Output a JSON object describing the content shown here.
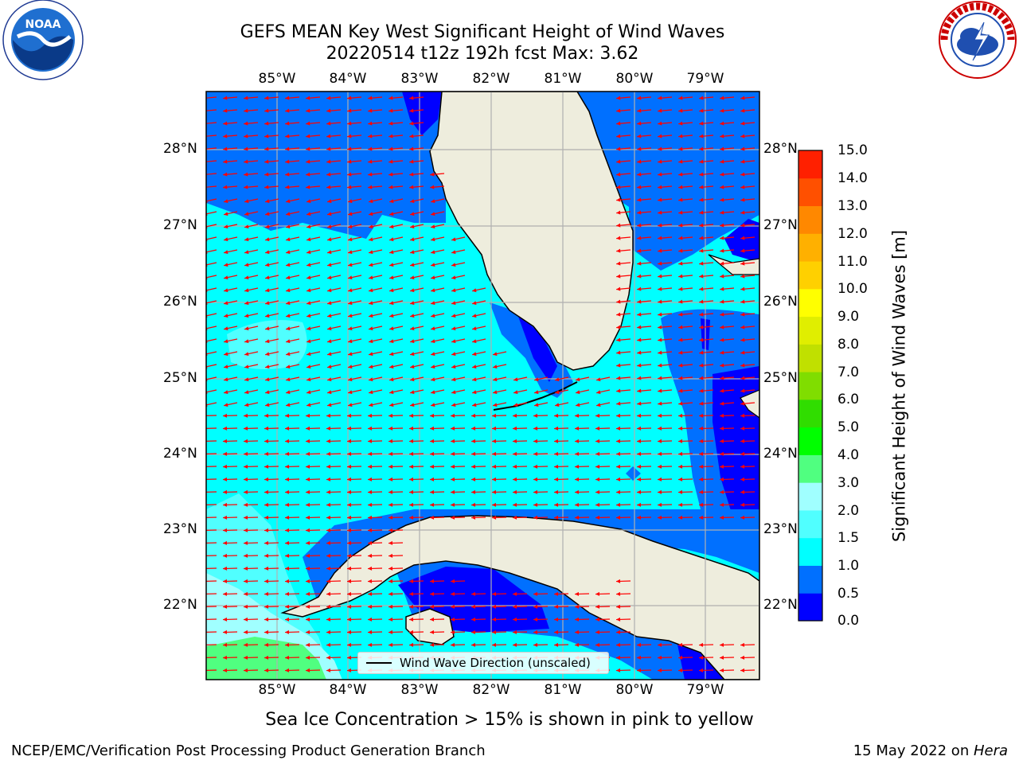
{
  "title": {
    "line1": "GEFS MEAN Key West Significant Height of Wind Waves",
    "line2": "20220514 t12z 192h fcst   Max: 3.62"
  },
  "map": {
    "longitude_ticks": [
      "85°W",
      "84°W",
      "83°W",
      "82°W",
      "81°W",
      "80°W",
      "79°W"
    ],
    "latitude_ticks": [
      "28°N",
      "27°N",
      "26°N",
      "25°N",
      "24°N",
      "23°N",
      "22°N"
    ],
    "legend_label": "Wind Wave Direction (unscaled)",
    "arrow_color": "#ff0000",
    "land_color": "#eeeddd",
    "grid_color": "#b0b0b0"
  },
  "colorbar": {
    "title": "Significant Height of Wind Waves [m]",
    "tick_labels": [
      "15.0",
      "14.0",
      "13.0",
      "12.0",
      "11.0",
      "10.0",
      "9.0",
      "8.0",
      "7.0",
      "6.0",
      "5.0",
      "4.0",
      "3.0",
      "2.0",
      "1.5",
      "1.0",
      "0.5",
      "0.0"
    ],
    "colors_bottom_to_top": [
      "#0000ff",
      "#0070ff",
      "#00ffff",
      "#50ffff",
      "#a0ffff",
      "#50ff80",
      "#00ff00",
      "#30dd00",
      "#80dd00",
      "#c0e000",
      "#e0ee00",
      "#ffff00",
      "#ffd000",
      "#ffb000",
      "#ff8800",
      "#ff5000",
      "#ff2000"
    ]
  },
  "subnote": "Sea Ice Concentration > 15% is shown in pink to yellow",
  "footer": {
    "left": "NCEP/EMC/Verification Post Processing Product Generation Branch",
    "right_prefix": "15 May 2022 on ",
    "right_host": "Hera"
  },
  "logos": {
    "noaa_text": "NOAA",
    "nws_text": "NATIONAL WEATHER SERVICE"
  }
}
